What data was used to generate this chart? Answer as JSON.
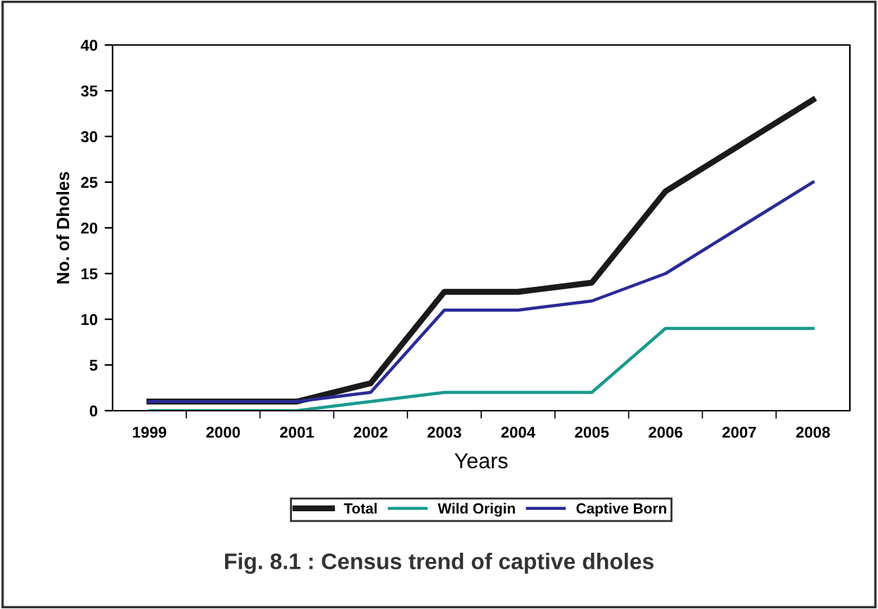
{
  "chart_data": {
    "type": "line",
    "xlabel": "Years",
    "ylabel": "No. of Dholes",
    "categories": [
      "1999",
      "2000",
      "2001",
      "2002",
      "2003",
      "2004",
      "2005",
      "2006",
      "2007",
      "2008"
    ],
    "series": [
      {
        "name": "Total",
        "color": "#1a1a1a",
        "values": [
          1,
          1,
          1,
          3,
          13,
          13,
          14,
          24,
          29,
          34
        ]
      },
      {
        "name": "Wild Origin",
        "color": "#1a9a8e",
        "values": [
          0,
          0,
          0,
          1,
          2,
          2,
          2,
          9,
          9,
          9
        ]
      },
      {
        "name": "Captive Born",
        "color": "#2a2a96",
        "values": [
          1,
          1,
          1,
          2,
          11,
          11,
          12,
          15,
          20,
          25
        ]
      }
    ],
    "ylim": [
      0,
      40
    ],
    "yticks": [
      0,
      5,
      10,
      15,
      20,
      25,
      30,
      35,
      40
    ],
    "grid": false,
    "legend": "bottom",
    "marker": "none",
    "line_style": "solid",
    "annotations": [
      "Fig. 8.1 : Census trend of captive dholes"
    ]
  }
}
